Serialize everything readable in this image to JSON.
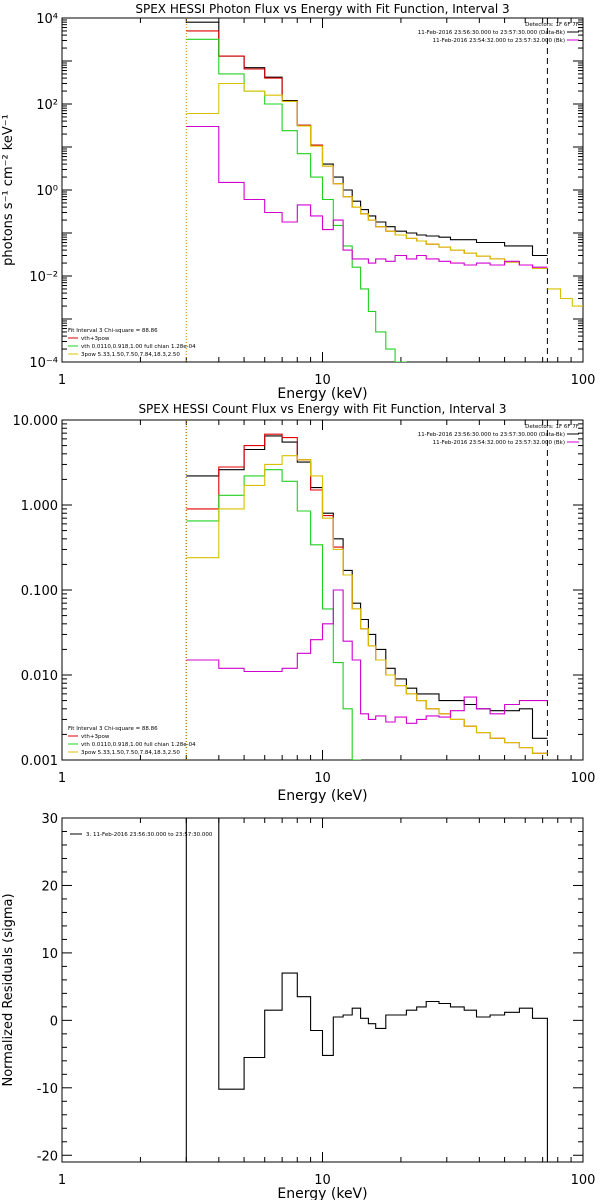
{
  "page": {
    "colors": {
      "background": "#ffffff",
      "black": "#000000",
      "red": "#e00000",
      "green": "#20d020",
      "yellow": "#d8c000",
      "magenta": "#d000d0",
      "orange_dotted": "#e08000"
    }
  },
  "chart_data": [
    {
      "type": "line",
      "step": true,
      "title": "SPEX HESSI Photon Flux vs Energy with Fit Function, Interval 3",
      "xlabel": "Energy (keV)",
      "ylabel": "photons s⁻¹ cm⁻² keV⁻¹",
      "xscale": "log",
      "yscale": "log",
      "xlim": [
        1,
        100
      ],
      "ylim": [
        0.0001,
        10000
      ],
      "x_ticks": [
        {
          "value": 1,
          "label": "1"
        },
        {
          "value": 10,
          "label": "10"
        },
        {
          "value": 100,
          "label": "100"
        }
      ],
      "y_ticks": [
        {
          "value": 0.0001,
          "label": "10⁻⁴"
        },
        {
          "value": 0.01,
          "label": "10⁻²"
        },
        {
          "value": 1,
          "label": "10⁰"
        },
        {
          "value": 100,
          "label": "10²"
        },
        {
          "value": 10000,
          "label": "10⁴"
        }
      ],
      "detectors": "Detectors: 1F 6F 7F",
      "time_legend": [
        {
          "text": "11-Feb-2016 23:56:30.000 to 23:57:30.000 (Data-Bk)",
          "color": "#000000"
        },
        {
          "text": "11-Feb-2016 23:54:32.000 to 23:57:32.000 (Bk)",
          "color": "#d000d0"
        }
      ],
      "fit_legend": [
        {
          "text": "Fit Interval 3   Chi-square = 88.86",
          "color": "#000000"
        },
        {
          "text": "vth+3pow",
          "color": "#e00000"
        },
        {
          "text": "vth 0.0110,0.918,1.00  full chian 1.28e-04",
          "color": "#20d020"
        },
        {
          "text": "3pow 5.33,1.50,7.50,7.84,18.3,2.50",
          "color": "#d8c000"
        }
      ],
      "vlines": [
        {
          "x": 3.0,
          "style": "dotted",
          "color": "#e08000"
        },
        {
          "x": 73,
          "style": "dashed",
          "color": "#000000"
        }
      ],
      "edges": [
        3.0,
        4.0,
        5.0,
        6.0,
        7.0,
        8.0,
        9.0,
        10.0,
        11.0,
        12.0,
        13.0,
        14.0,
        15.0,
        16.0,
        17.5,
        19.0,
        21.0,
        23.0,
        25.0,
        28.0,
        31.0,
        35.0,
        39.0,
        44.0,
        50.0,
        57.0,
        64.0,
        73.0
      ],
      "series": [
        {
          "key": "data",
          "color": "#000000",
          "values": [
            8000,
            1300,
            700,
            420,
            120,
            32,
            11,
            4.0,
            2.0,
            1.0,
            0.55,
            0.35,
            0.25,
            0.18,
            0.14,
            0.11,
            0.1,
            0.09,
            0.085,
            0.08,
            0.07,
            0.07,
            0.06,
            0.06,
            0.05,
            0.05,
            0.03
          ]
        },
        {
          "key": "fit",
          "color": "#e00000",
          "values": [
            5000,
            1300,
            650,
            400,
            115,
            32,
            11,
            3.6,
            1.4,
            0.7,
            0.4,
            0.28,
            0.2,
            0.14,
            0.11,
            0.09,
            0.075,
            0.065,
            0.055,
            0.047,
            0.04,
            0.034,
            0.029,
            0.025,
            0.021,
            0.018,
            0.015
          ]
        },
        {
          "key": "thermal",
          "color": "#20d020",
          "values": [
            3200,
            500,
            200,
            100,
            24,
            7,
            2.0,
            0.6,
            0.15,
            0.05,
            0.016,
            0.005,
            0.0015,
            0.0005,
            0.0002,
            8e-05
          ]
        },
        {
          "key": "powerlaw",
          "color": "#d8c000",
          "values": [
            60,
            300,
            200,
            160,
            115,
            31,
            10.5,
            3.6,
            1.4,
            0.7,
            0.4,
            0.28,
            0.2,
            0.14,
            0.11,
            0.09,
            0.075,
            0.065,
            0.055,
            0.047,
            0.04,
            0.034,
            0.029,
            0.025,
            0.021,
            0.018,
            0.015
          ]
        },
        {
          "key": "background",
          "color": "#d000d0",
          "values": [
            30,
            1.5,
            0.6,
            0.3,
            0.18,
            0.45,
            0.25,
            0.12,
            0.2,
            0.04,
            0.025,
            0.025,
            0.02,
            0.025,
            0.022,
            0.03,
            0.025,
            0.03,
            0.025,
            0.022,
            0.02,
            0.018,
            0.02,
            0.018,
            0.022,
            0.018,
            0.016
          ]
        },
        {
          "key": "powerlaw_ext",
          "color": "#d8c000",
          "edges": [
            73,
            82,
            91,
            100
          ],
          "values": [
            0.005,
            0.003,
            0.002
          ]
        }
      ]
    },
    {
      "type": "line",
      "step": true,
      "title": "SPEX HESSI Count Flux vs Energy with Fit Function, Interval 3",
      "xlabel": "Energy (keV)",
      "ylabel": "",
      "xscale": "log",
      "yscale": "log",
      "xlim": [
        1,
        100
      ],
      "ylim": [
        0.001,
        10
      ],
      "x_ticks": [
        {
          "value": 1,
          "label": "1"
        },
        {
          "value": 10,
          "label": "10"
        },
        {
          "value": 100,
          "label": "100"
        }
      ],
      "y_ticks": [
        {
          "value": 0.001,
          "label": "0.001"
        },
        {
          "value": 0.01,
          "label": "0.010"
        },
        {
          "value": 0.1,
          "label": "0.100"
        },
        {
          "value": 1,
          "label": "1.000"
        },
        {
          "value": 10,
          "label": "10.000"
        }
      ],
      "detectors": "Detectors: 1F 6F 7F",
      "time_legend": [
        {
          "text": "11-Feb-2016 23:56:30.000 to 23:57:30.000 (Data-Bk)",
          "color": "#000000"
        },
        {
          "text": "11-Feb-2016 23:54:32.000 to 23:57:32.000 (Bk)",
          "color": "#d000d0"
        }
      ],
      "fit_legend": [
        {
          "text": "Fit Interval 3   Chi-square = 88.86",
          "color": "#000000"
        },
        {
          "text": "vth+3pow",
          "color": "#e00000"
        },
        {
          "text": "vth 0.0110,0.918,1.00  full chian 1.28e-04",
          "color": "#20d020"
        },
        {
          "text": "3pow 5.33,1.50,7.50,7.84,18.3,2.50",
          "color": "#d8c000"
        }
      ],
      "vlines": [
        {
          "x": 3.0,
          "style": "dotted",
          "color": "#000000"
        },
        {
          "x": 3.0,
          "style": "dotted",
          "color": "#e08000"
        },
        {
          "x": 73,
          "style": "dashed",
          "color": "#000000"
        }
      ],
      "edges": [
        3.0,
        4.0,
        5.0,
        6.0,
        7.0,
        8.0,
        9.0,
        10.0,
        11.0,
        12.0,
        13.0,
        14.0,
        15.0,
        16.0,
        17.5,
        19.0,
        21.0,
        23.0,
        25.0,
        28.0,
        31.0,
        35.0,
        39.0,
        44.0,
        50.0,
        57.0,
        64.0,
        73.0
      ],
      "series": [
        {
          "key": "data",
          "color": "#000000",
          "values": [
            2.2,
            2.6,
            4.5,
            6.5,
            5.5,
            3.2,
            1.6,
            0.8,
            0.4,
            0.17,
            0.07,
            0.045,
            0.03,
            0.02,
            0.012,
            0.009,
            0.007,
            0.006,
            0.006,
            0.005,
            0.005,
            0.0045,
            0.004,
            0.0038,
            0.0038,
            0.004,
            0.0018
          ]
        },
        {
          "key": "fit",
          "color": "#e00000",
          "values": [
            0.9,
            2.8,
            5.0,
            6.8,
            6.2,
            3.4,
            1.5,
            0.75,
            0.32,
            0.15,
            0.06,
            0.035,
            0.022,
            0.015,
            0.01,
            0.0075,
            0.006,
            0.005,
            0.004,
            0.0035,
            0.003,
            0.0025,
            0.0021,
            0.0018,
            0.0016,
            0.0014,
            0.0012
          ]
        },
        {
          "key": "thermal",
          "color": "#20d020",
          "values": [
            0.65,
            1.3,
            2.2,
            2.6,
            1.9,
            0.85,
            0.34,
            0.06,
            0.014,
            0.004,
            0.001
          ]
        },
        {
          "key": "powerlaw",
          "color": "#d8c000",
          "values": [
            0.24,
            0.9,
            1.7,
            3.0,
            3.8,
            3.4,
            2.2,
            0.7,
            0.3,
            0.15,
            0.06,
            0.035,
            0.022,
            0.015,
            0.01,
            0.0075,
            0.006,
            0.005,
            0.004,
            0.0035,
            0.003,
            0.0025,
            0.0021,
            0.0018,
            0.0016,
            0.0014,
            0.0012
          ]
        },
        {
          "key": "background",
          "color": "#d000d0",
          "values": [
            0.015,
            0.012,
            0.011,
            0.011,
            0.012,
            0.018,
            0.026,
            0.04,
            0.1,
            0.025,
            0.015,
            0.0035,
            0.003,
            0.0033,
            0.0028,
            0.0032,
            0.0027,
            0.003,
            0.0033,
            0.0032,
            0.0038,
            0.0055,
            0.004,
            0.0035,
            0.0045,
            0.005,
            0.005
          ]
        }
      ]
    },
    {
      "type": "line",
      "step": true,
      "title": "",
      "xlabel": "Energy (keV)",
      "ylabel": "Normalized Residuals (sigma)",
      "xscale": "log",
      "yscale": "linear",
      "xlim": [
        1,
        100
      ],
      "ylim": [
        -21,
        30
      ],
      "x_ticks": [
        {
          "value": 1,
          "label": "1"
        },
        {
          "value": 10,
          "label": "10"
        },
        {
          "value": 100,
          "label": "100"
        }
      ],
      "y_ticks": [
        {
          "value": -20,
          "label": "-20"
        },
        {
          "value": -10,
          "label": "-10"
        },
        {
          "value": 0,
          "label": "0"
        },
        {
          "value": 10,
          "label": "10"
        },
        {
          "value": 20,
          "label": "20"
        },
        {
          "value": 30,
          "label": "30"
        }
      ],
      "legend": [
        {
          "text": "3. 11-Feb-2016 23:56:30.000 to 23:57:30.000",
          "color": "#000000"
        }
      ],
      "edges": [
        3.0,
        4.0,
        5.0,
        6.0,
        7.0,
        8.0,
        9.0,
        10.0,
        11.0,
        12.0,
        13.0,
        14.0,
        15.0,
        16.0,
        17.5,
        19.0,
        21.0,
        23.0,
        25.0,
        28.0,
        31.0,
        35.0,
        39.0,
        44.0,
        50.0,
        57.0,
        64.0,
        73.0
      ],
      "series": [
        {
          "key": "residuals",
          "color": "#000000",
          "closed": true,
          "values": [
            30,
            -10.2,
            -5.5,
            1.5,
            7.0,
            3.5,
            -1.5,
            -5.2,
            0.5,
            0.8,
            1.8,
            0.3,
            -0.5,
            -1.2,
            0.8,
            0.8,
            1.5,
            2.0,
            2.8,
            2.5,
            2.0,
            1.5,
            0.5,
            0.8,
            1.2,
            1.8,
            0.3
          ]
        }
      ]
    }
  ]
}
